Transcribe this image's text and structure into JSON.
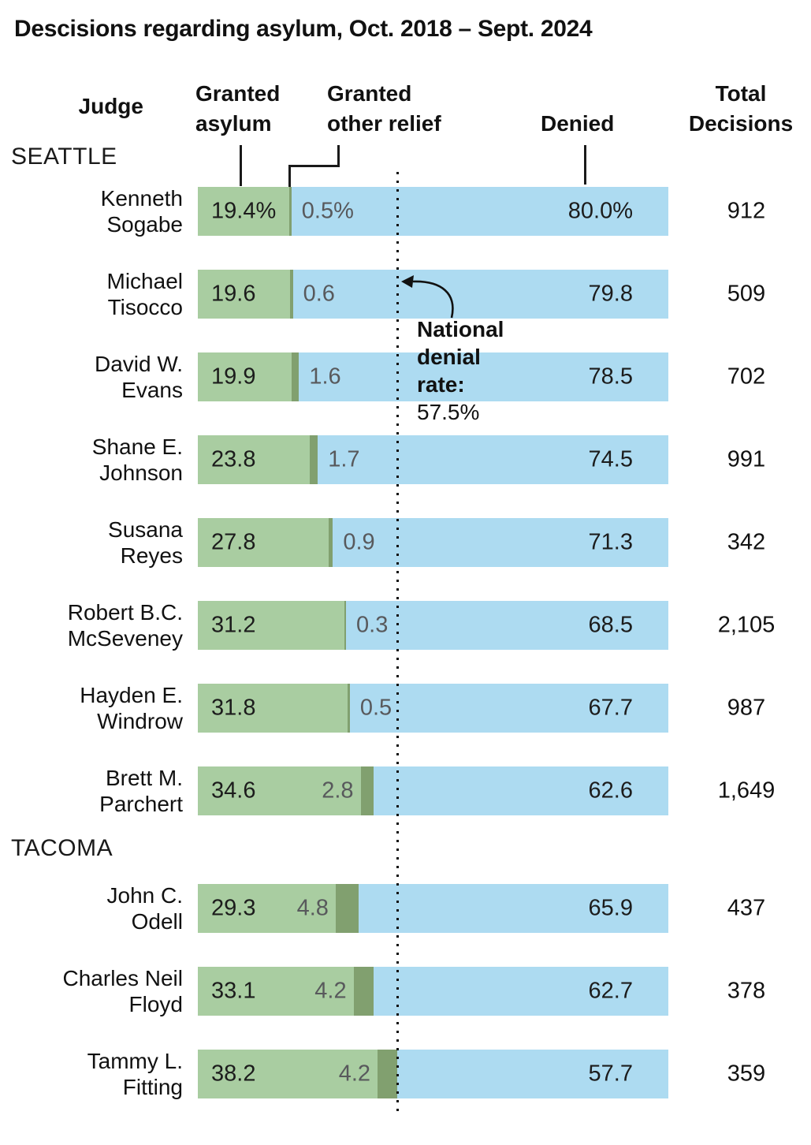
{
  "title": "Descisions regarding asylum, Oct. 2018 – Sept. 2024",
  "header": {
    "judge": "Judge",
    "granted_asylum": [
      "Granted",
      "asylum"
    ],
    "granted_other": [
      "Granted",
      "other relief"
    ],
    "denied": "Denied",
    "total": [
      "Total",
      "Decisions"
    ]
  },
  "annotation": {
    "text_lines": [
      "National",
      "denial",
      "rate:"
    ],
    "value_line": "57.5%",
    "national_denial_rate_pct": 57.5
  },
  "colors": {
    "granted_asylum": "#a9cda1",
    "granted_other": "#81a06f",
    "denied": "#addbf1",
    "label_gray": "#58595c",
    "text": "#111111"
  },
  "sections": [
    {
      "label": "SEATTLE",
      "rows": [
        {
          "name": "Kenneth\nSogabe",
          "asylum": 19.4,
          "other": 0.5,
          "denied": 80.0,
          "asylum_label": "19.4%",
          "other_label": "0.5%",
          "denied_label": "80.0%",
          "total": "912"
        },
        {
          "name": "Michael\nTisocco",
          "asylum": 19.6,
          "other": 0.6,
          "denied": 79.8,
          "asylum_label": "19.6",
          "other_label": "0.6",
          "denied_label": "79.8",
          "total": "509"
        },
        {
          "name": "David W.\nEvans",
          "asylum": 19.9,
          "other": 1.6,
          "denied": 78.5,
          "asylum_label": "19.9",
          "other_label": "1.6",
          "denied_label": "78.5",
          "total": "702"
        },
        {
          "name": "Shane E.\nJohnson",
          "asylum": 23.8,
          "other": 1.7,
          "denied": 74.5,
          "asylum_label": "23.8",
          "other_label": "1.7",
          "denied_label": "74.5",
          "total": "991"
        },
        {
          "name": "Susana\nReyes",
          "asylum": 27.8,
          "other": 0.9,
          "denied": 71.3,
          "asylum_label": "27.8",
          "other_label": "0.9",
          "denied_label": "71.3",
          "total": "342"
        },
        {
          "name": "Robert B.C.\nMcSeveney",
          "asylum": 31.2,
          "other": 0.3,
          "denied": 68.5,
          "asylum_label": "31.2",
          "other_label": "0.3",
          "denied_label": "68.5",
          "total": "2,105"
        },
        {
          "name": "Hayden E.\nWindrow",
          "asylum": 31.8,
          "other": 0.5,
          "denied": 67.7,
          "asylum_label": "31.8",
          "other_label": "0.5",
          "denied_label": "67.7",
          "total": "987"
        },
        {
          "name": "Brett M.\nParchert",
          "asylum": 34.6,
          "other": 2.8,
          "denied": 62.6,
          "asylum_label": "34.6",
          "other_label": "2.8",
          "denied_label": "62.6",
          "total": "1,649"
        }
      ]
    },
    {
      "label": "TACOMA",
      "rows": [
        {
          "name": "John C.\nOdell",
          "asylum": 29.3,
          "other": 4.8,
          "denied": 65.9,
          "asylum_label": "29.3",
          "other_label": "4.8",
          "denied_label": "65.9",
          "total": "437"
        },
        {
          "name": "Charles Neil\nFloyd",
          "asylum": 33.1,
          "other": 4.2,
          "denied": 62.7,
          "asylum_label": "33.1",
          "other_label": "4.2",
          "denied_label": "62.7",
          "total": "378"
        },
        {
          "name": "Tammy L.\nFitting",
          "asylum": 38.2,
          "other": 4.2,
          "denied": 57.7,
          "asylum_label": "38.2",
          "other_label": "4.2",
          "denied_label": "57.7",
          "total": "359"
        }
      ]
    }
  ],
  "chart_data": {
    "type": "bar",
    "subtype": "horizontal-stacked-100pct",
    "title": "Descisions regarding asylum, Oct. 2018 – Sept. 2024",
    "categories": [
      "Kenneth Sogabe",
      "Michael Tisocco",
      "David W. Evans",
      "Shane E. Johnson",
      "Susana Reyes",
      "Robert B.C. McSeveney",
      "Hayden E. Windrow",
      "Brett M. Parchert",
      "John C. Odell",
      "Charles Neil Floyd",
      "Tammy L. Fitting"
    ],
    "category_groups": {
      "SEATTLE": [
        0,
        1,
        2,
        3,
        4,
        5,
        6,
        7
      ],
      "TACOMA": [
        8,
        9,
        10
      ]
    },
    "series": [
      {
        "name": "Granted asylum",
        "unit": "%",
        "values": [
          19.4,
          19.6,
          19.9,
          23.8,
          27.8,
          31.2,
          31.8,
          34.6,
          29.3,
          33.1,
          38.2
        ]
      },
      {
        "name": "Granted other relief",
        "unit": "%",
        "values": [
          0.5,
          0.6,
          1.6,
          1.7,
          0.9,
          0.3,
          0.5,
          2.8,
          4.8,
          4.2,
          4.2
        ]
      },
      {
        "name": "Denied",
        "unit": "%",
        "values": [
          80.0,
          79.8,
          78.5,
          74.5,
          71.3,
          68.5,
          67.7,
          62.6,
          65.9,
          62.7,
          57.7
        ]
      }
    ],
    "total_decisions": [
      912,
      509,
      702,
      991,
      342,
      2105,
      987,
      1649,
      437,
      378,
      359
    ],
    "reference_line": {
      "label": "National denial rate: 57.5%",
      "value_pct_denied": 57.5,
      "position_from_left_pct": 42.5,
      "style": "dotted-vertical"
    },
    "xlim": [
      0,
      100
    ],
    "grid": false,
    "legend_position": "column-headers-with-leader-lines"
  }
}
